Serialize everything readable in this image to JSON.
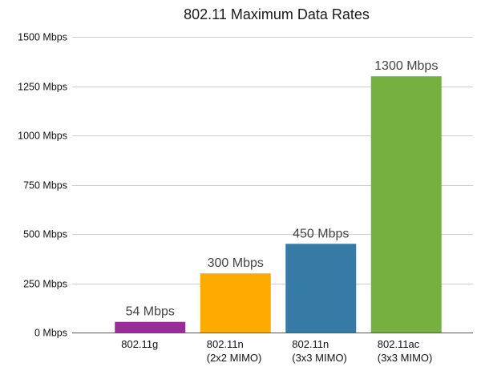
{
  "chart_data": {
    "type": "bar",
    "title": "802.11 Maximum Data Rates",
    "xlabel": "",
    "ylabel": "",
    "categories": [
      [
        "802.11g"
      ],
      [
        "802.11n",
        "(2x2 MIMO)"
      ],
      [
        "802.11n",
        "(3x3 MIMO)"
      ],
      [
        "802.11ac",
        "(3x3 MIMO)"
      ]
    ],
    "values": [
      54,
      300,
      450,
      1300
    ],
    "value_labels": [
      "54 Mbps",
      "300 Mbps",
      "450 Mbps",
      "1300 Mbps"
    ],
    "colors": [
      "#9b2a9b",
      "#ffaa00",
      "#367aa6",
      "#76b041"
    ],
    "ylim": [
      0,
      1500
    ],
    "yticks": [
      0,
      250,
      500,
      750,
      1000,
      1250,
      1500
    ],
    "ytick_labels": [
      "0 Mbps",
      "250 Mbps",
      "500 Mbps",
      "750 Mbps",
      "1000 Mbps",
      "1250 Mbps",
      "1500 Mbps"
    ],
    "grid": true,
    "legend": "none"
  }
}
